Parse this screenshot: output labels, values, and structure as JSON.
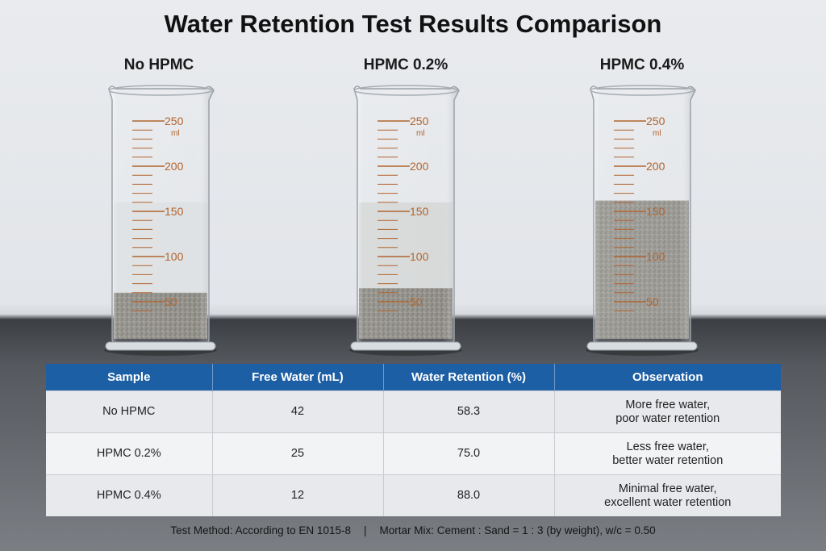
{
  "title": "Water Retention Test Results Comparison",
  "beakers": [
    {
      "label": "No HPMC",
      "free_water_level_ml": 160,
      "sediment_level_ml": 60,
      "water_tint": "#dcdfe1"
    },
    {
      "label": "HPMC 0.2%",
      "free_water_level_ml": 160,
      "sediment_level_ml": 65,
      "water_tint": "#d4d6d6"
    },
    {
      "label": "HPMC 0.4%",
      "free_water_level_ml": 162,
      "sediment_level_ml": 162,
      "water_tint": "#b8b9b8"
    }
  ],
  "scale": {
    "unit": "ml",
    "major_ticks": [
      "250",
      "200",
      "150",
      "100",
      "50"
    ]
  },
  "colors": {
    "header_bg": "#1d5fa5",
    "scale_marks": "#b0642f",
    "mortar": "#8f8d86"
  },
  "table": {
    "headers": [
      "Sample",
      "Free Water (mL)",
      "Water Retention (%)",
      "Observation"
    ],
    "rows": [
      {
        "sample": "No HPMC",
        "free_water": "42",
        "retention": "58.3",
        "observation": [
          "More free water,",
          "poor water retention"
        ]
      },
      {
        "sample": "HPMC 0.2%",
        "free_water": "25",
        "retention": "75.0",
        "observation": [
          "Less free water,",
          "better water retention"
        ]
      },
      {
        "sample": "HPMC 0.4%",
        "free_water": "12",
        "retention": "88.0",
        "observation": [
          "Minimal free water,",
          "excellent water retention"
        ]
      }
    ]
  },
  "footer": {
    "method": "Test Method: According to EN 1015-8",
    "separator": "|",
    "mix": "Mortar Mix: Cement : Sand = 1 : 3 (by weight), w/c = 0.50"
  }
}
